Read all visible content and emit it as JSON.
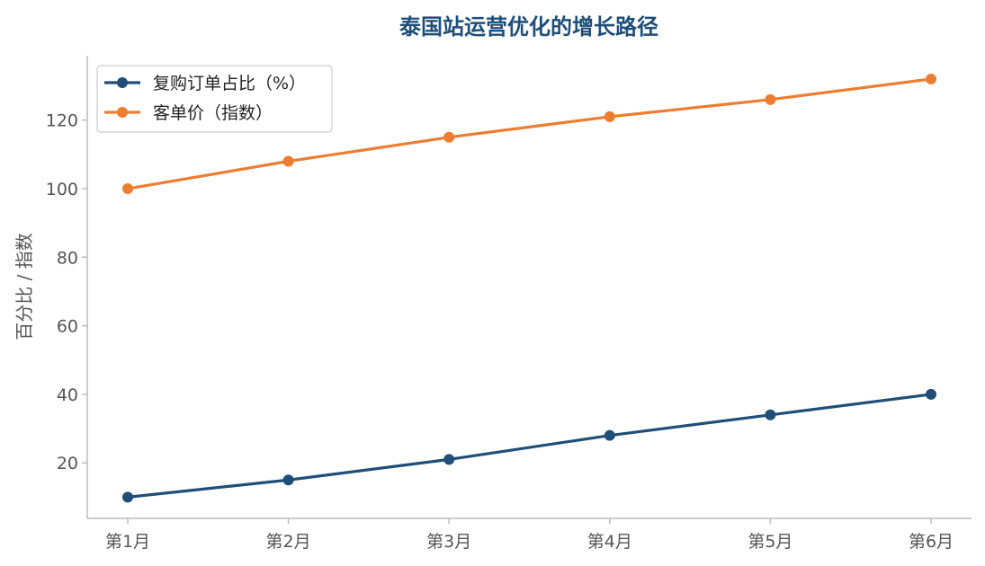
{
  "chart_data": {
    "type": "line",
    "title": "泰国站运营优化的增长路径",
    "ylabel": "百分比 / 指数",
    "xlabel": "",
    "categories": [
      "第1月",
      "第2月",
      "第3月",
      "第4月",
      "第5月",
      "第6月"
    ],
    "ylim": [
      3.8,
      138.8
    ],
    "yticks": [
      20,
      40,
      60,
      80,
      100,
      120
    ],
    "grid": false,
    "legend_position": "top-left",
    "series": [
      {
        "name": "复购订单占比（%）",
        "values": [
          10,
          15,
          21,
          28,
          34,
          40
        ],
        "color": "#1f4e79"
      },
      {
        "name": "客单价（指数）",
        "values": [
          100,
          108,
          115,
          121,
          126,
          132
        ],
        "color": "#ed7d31"
      }
    ]
  },
  "colors": {
    "title": "#1f4e79",
    "axis": "#bbbbbb",
    "text": "#555555"
  }
}
